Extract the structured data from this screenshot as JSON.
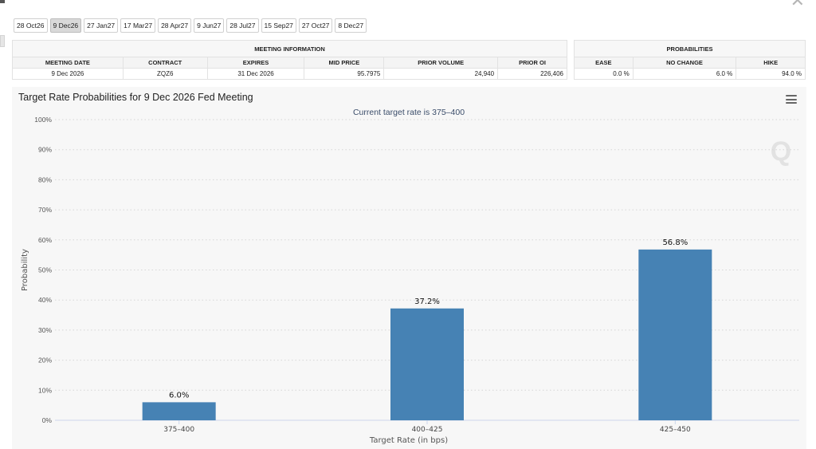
{
  "tabs": [
    "28 Oct26",
    "9 Dec26",
    "27 Jan27",
    "17 Mar27",
    "28 Apr27",
    "9 Jun27",
    "28 Jul27",
    "15 Sep27",
    "27 Oct27",
    "8 Dec27"
  ],
  "active_tab": 1,
  "meeting_info": {
    "group_title": "MEETING INFORMATION",
    "headers": [
      "MEETING DATE",
      "CONTRACT",
      "EXPIRES",
      "MID PRICE",
      "PRIOR VOLUME",
      "PRIOR OI"
    ],
    "row": [
      "9 Dec 2026",
      "ZQZ6",
      "31 Dec 2026",
      "95.7975",
      "24,940",
      "226,406"
    ]
  },
  "probabilities": {
    "group_title": "PROBABILITIES",
    "headers": [
      "EASE",
      "NO CHANGE",
      "HIKE"
    ],
    "row": [
      "0.0 %",
      "6.0 %",
      "94.0 %"
    ]
  },
  "watermark": "Q",
  "chart_data": {
    "type": "bar",
    "title": "Target Rate Probabilities for 9 Dec 2026 Fed Meeting",
    "subtitle": "Current target rate is 375–400",
    "xlabel": "Target Rate (in bps)",
    "ylabel": "Probability",
    "categories": [
      "375–400",
      "400–425",
      "425–450"
    ],
    "values": [
      6.0,
      37.2,
      56.8
    ],
    "data_labels": [
      "6.0%",
      "37.2%",
      "56.8%"
    ],
    "ylim": [
      0,
      100
    ],
    "yticks": [
      0,
      10,
      20,
      30,
      40,
      50,
      60,
      70,
      80,
      90,
      100
    ],
    "ytick_labels": [
      "0%",
      "10%",
      "20%",
      "30%",
      "40%",
      "50%",
      "60%",
      "70%",
      "80%",
      "90%",
      "100%"
    ],
    "grid": true,
    "bar_color": "#4682b4"
  }
}
